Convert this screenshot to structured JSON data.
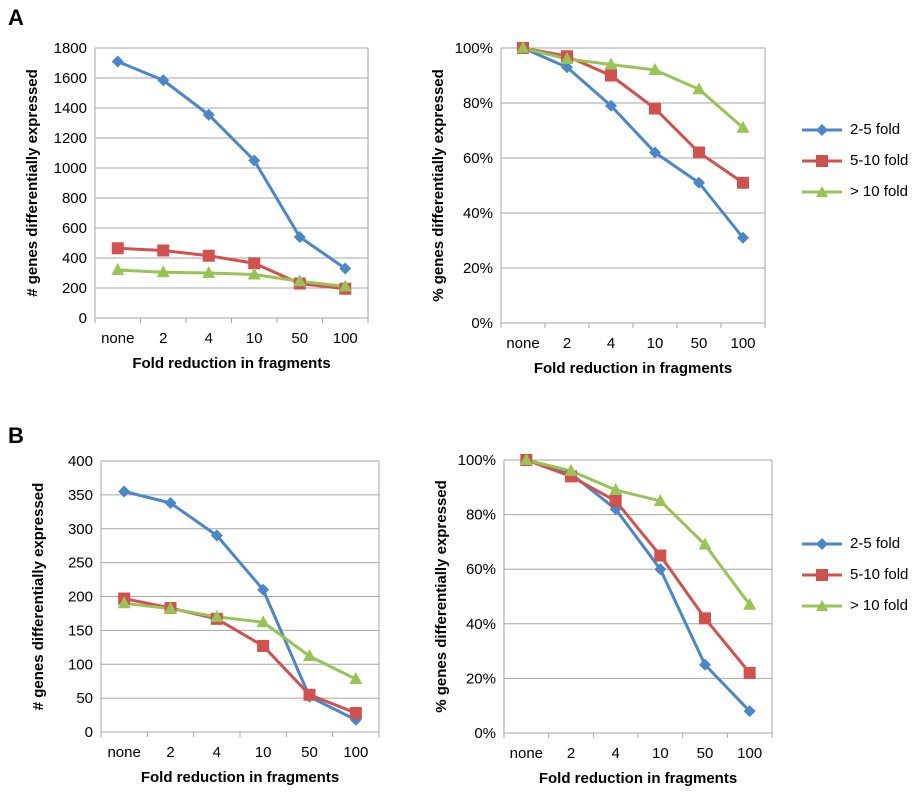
{
  "panels": [
    {
      "letter": "A"
    },
    {
      "letter": "B"
    }
  ],
  "legend": {
    "items": [
      {
        "label": "2-5 fold",
        "color": "#4a86c8",
        "marker": "diamond"
      },
      {
        "label": "5-10 fold",
        "color": "#d2504d",
        "marker": "square"
      },
      {
        "label": "> 10 fold",
        "color": "#98c456",
        "marker": "triangle"
      }
    ]
  },
  "chart_data": [
    {
      "panel": "A",
      "type": "line",
      "categories": [
        "none",
        "2",
        "4",
        "10",
        "50",
        "100"
      ],
      "xlabel": "Fold reduction in fragments",
      "ylabel": "# genes differentially expressed",
      "ylim": [
        0,
        1800
      ],
      "yticks": [
        "0",
        "200",
        "400",
        "600",
        "800",
        "1000",
        "1200",
        "1400",
        "1600",
        "1800"
      ],
      "grid": true,
      "legend": "none",
      "series": [
        {
          "name": "2-5 fold",
          "values": [
            1710,
            1585,
            1355,
            1050,
            540,
            330
          ]
        },
        {
          "name": "5-10 fold",
          "values": [
            465,
            450,
            415,
            365,
            230,
            195
          ]
        },
        {
          "name": "> 10 fold",
          "values": [
            320,
            305,
            300,
            290,
            245,
            210
          ]
        }
      ]
    },
    {
      "panel": "A",
      "type": "line",
      "categories": [
        "none",
        "2",
        "4",
        "10",
        "50",
        "100"
      ],
      "xlabel": "Fold reduction in fragments",
      "ylabel": "% genes differentially expressed",
      "ylim": [
        0,
        100
      ],
      "yticks": [
        "0%",
        "20%",
        "40%",
        "60%",
        "80%",
        "100%"
      ],
      "grid": true,
      "legend": "right",
      "series": [
        {
          "name": "2-5 fold",
          "values": [
            100,
            93,
            79,
            62,
            51,
            31
          ]
        },
        {
          "name": "5-10 fold",
          "values": [
            100,
            97,
            90,
            78,
            62,
            51
          ]
        },
        {
          "name": "> 10 fold",
          "values": [
            100,
            96,
            94,
            92,
            85,
            71
          ]
        }
      ]
    },
    {
      "panel": "B",
      "type": "line",
      "categories": [
        "none",
        "2",
        "4",
        "10",
        "50",
        "100"
      ],
      "xlabel": "Fold reduction in fragments",
      "ylabel": "# genes differentially expressed",
      "ylim": [
        0,
        400
      ],
      "yticks": [
        "0",
        "50",
        "100",
        "150",
        "200",
        "250",
        "300",
        "350",
        "400"
      ],
      "grid": true,
      "legend": "none",
      "series": [
        {
          "name": "2-5 fold",
          "values": [
            355,
            338,
            290,
            210,
            52,
            18
          ]
        },
        {
          "name": "5-10 fold",
          "values": [
            197,
            183,
            167,
            127,
            55,
            28
          ]
        },
        {
          "name": "> 10 fold",
          "values": [
            190,
            182,
            170,
            162,
            112,
            78
          ]
        }
      ]
    },
    {
      "panel": "B",
      "type": "line",
      "categories": [
        "none",
        "2",
        "4",
        "10",
        "50",
        "100"
      ],
      "xlabel": "Fold reduction in fragments",
      "ylabel": "% genes differentially expressed",
      "ylim": [
        0,
        100
      ],
      "yticks": [
        "0%",
        "20%",
        "40%",
        "60%",
        "80%",
        "100%"
      ],
      "grid": true,
      "legend": "right",
      "series": [
        {
          "name": "2-5 fold",
          "values": [
            100,
            95,
            82,
            60,
            25,
            8
          ]
        },
        {
          "name": "5-10 fold",
          "values": [
            100,
            94,
            85,
            65,
            42,
            22
          ]
        },
        {
          "name": "> 10 fold",
          "values": [
            100,
            96,
            89,
            85,
            69,
            47
          ]
        }
      ]
    }
  ]
}
